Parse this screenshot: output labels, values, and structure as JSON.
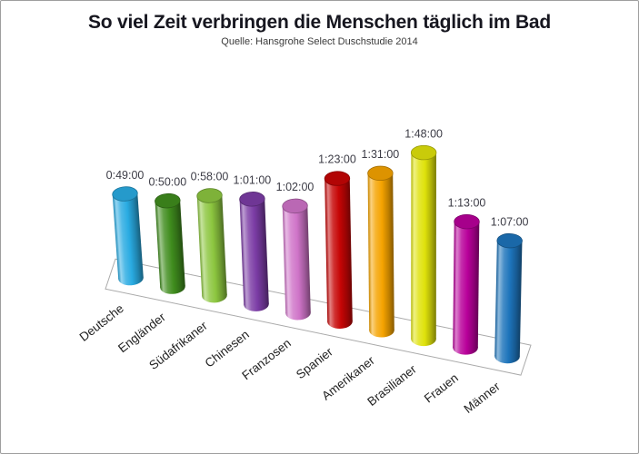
{
  "header": {
    "title": "So viel Zeit verbringen die Menschen täglich im Bad",
    "source": "Quelle: Hansgrohe Select Duschstudie 2014"
  },
  "colors": {
    "background": "#ffffff",
    "frame_border": "#9e9e9e",
    "title_text": "#16161f",
    "source_text": "#3a3a3a",
    "value_label_text": "#3c3c46",
    "category_label_text": "#222222",
    "floor_outline": "#aaaaaa"
  },
  "chart_data": {
    "type": "bar",
    "variant": "3d-cylinder",
    "title": "So viel Zeit verbringen die Menschen täglich im Bad",
    "source": "Quelle: Hansgrohe Select Duschstudie 2014",
    "unit": "h:mm:ss pro Tag",
    "categories": [
      "Deutsche",
      "Engländer",
      "Südafrikaner",
      "Chinesen",
      "Franzosen",
      "Spanier",
      "Amerikaner",
      "Brasilianer",
      "Frauen",
      "Männer"
    ],
    "value_labels": [
      "0:49:00",
      "0:50:00",
      "0:58:00",
      "1:01:00",
      "1:02:00",
      "1:23:00",
      "1:31:00",
      "1:48:00",
      "1:13:00",
      "1:07:00"
    ],
    "values_minutes": [
      49,
      50,
      58,
      61,
      62,
      83,
      91,
      108,
      73,
      67
    ],
    "bar_colors": [
      "#29abe2",
      "#3f8c1d",
      "#8cc63f",
      "#7b3ca5",
      "#cf74c8",
      "#c60505",
      "#f5a300",
      "#dfe20b",
      "#b8009a",
      "#1d74bb"
    ],
    "axes": {
      "x_axis_visible": false,
      "y_axis_visible": false,
      "gridlines": false,
      "tick_labels": "none"
    },
    "legend": {
      "visible": false
    },
    "floor": {
      "visible": true,
      "outline_color": "#aaaaaa",
      "fill": "#ffffff"
    }
  }
}
